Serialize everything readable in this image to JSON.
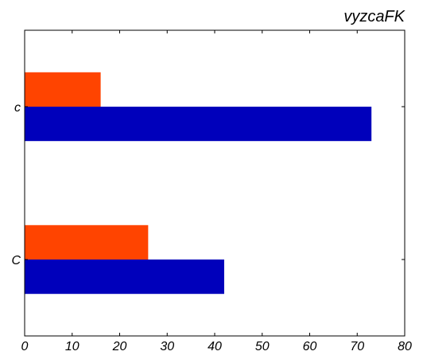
{
  "chart_data": {
    "type": "bar",
    "orientation": "horizontal",
    "title": "vyzcaFK",
    "categories": [
      "C",
      "c"
    ],
    "series": [
      {
        "values": [
          42,
          73
        ],
        "color": "#0000bb"
      },
      {
        "values": [
          26,
          16
        ],
        "color": "#ff4400"
      }
    ],
    "xlim": [
      0,
      80
    ],
    "xticks": [
      0,
      10,
      20,
      30,
      40,
      50,
      60,
      70,
      80
    ],
    "xticklabels": [
      "0",
      "10",
      "20",
      "30",
      "40",
      "50",
      "60",
      "70",
      "80"
    ],
    "grid": false,
    "legend": "none"
  }
}
